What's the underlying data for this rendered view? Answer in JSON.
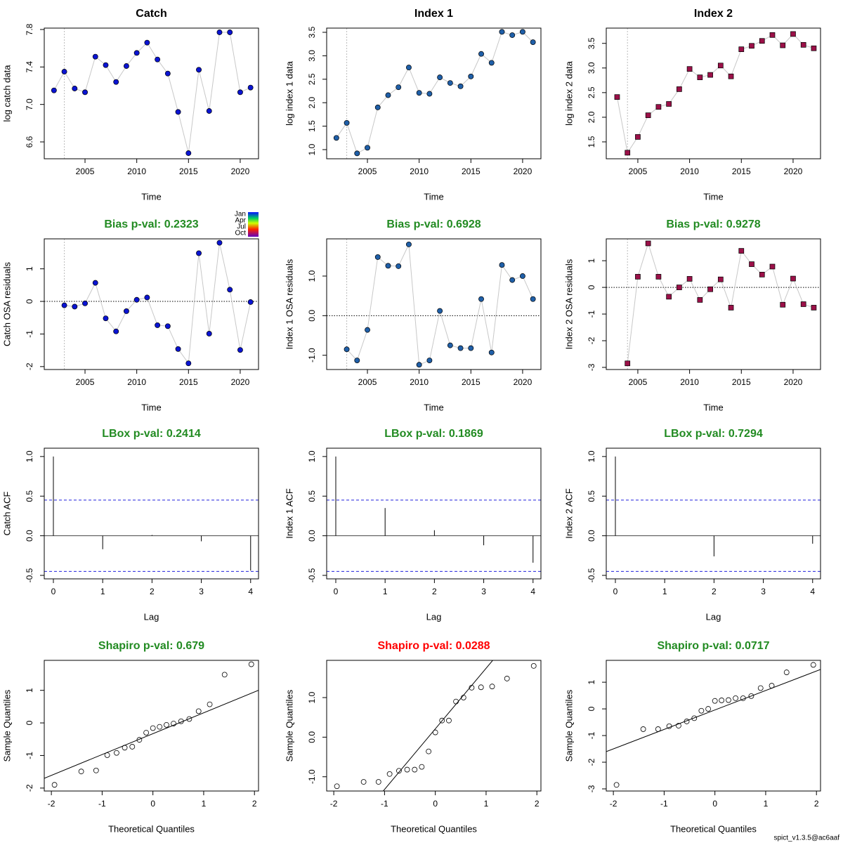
{
  "chart_data": [
    {
      "type": "line",
      "title": "Catch",
      "title_color": "#000000",
      "xlabel": "Time",
      "ylabel": "log catch data",
      "marker": "circle",
      "color": "#0a14d2",
      "x": [
        2002,
        2003,
        2004,
        2005,
        2006,
        2007,
        2008,
        2009,
        2010,
        2011,
        2012,
        2013,
        2014,
        2015,
        2016,
        2017,
        2018,
        2019,
        2020,
        2021
      ],
      "values": [
        7.15,
        7.35,
        7.17,
        7.13,
        7.51,
        7.42,
        7.24,
        7.41,
        7.55,
        7.66,
        7.48,
        7.33,
        6.92,
        6.48,
        7.37,
        6.93,
        7.77,
        7.77,
        7.13,
        7.18
      ],
      "xlim": [
        2001.06,
        2021.77
      ],
      "xticks": [
        2005,
        2010,
        2015,
        2020
      ],
      "ylim": [
        6.42,
        7.815
      ],
      "yticks": [
        {
          "value": 6.6,
          "label": "6.6"
        },
        {
          "value": 7.0,
          "label": "7.0"
        },
        {
          "value": 7.4,
          "label": "7.4"
        },
        {
          "value": 7.8,
          "label": "7.8"
        }
      ],
      "vline": 2003
    },
    {
      "type": "line",
      "title": "Index 1",
      "title_color": "#000000",
      "xlabel": "Time",
      "ylabel": "log index 1 data",
      "marker": "circle",
      "color": "#1f5fa8",
      "x": [
        2002,
        2003,
        2004,
        2005,
        2006,
        2007,
        2008,
        2009,
        2010,
        2011,
        2012,
        2013,
        2014,
        2015,
        2016,
        2017,
        2018,
        2019,
        2020,
        2021
      ],
      "values": [
        1.25,
        1.57,
        0.92,
        1.04,
        1.9,
        2.16,
        2.33,
        2.75,
        2.21,
        2.19,
        2.54,
        2.42,
        2.35,
        2.56,
        3.04,
        2.85,
        3.51,
        3.44,
        3.51,
        3.29
      ],
      "xlim": [
        2001.06,
        2021.77
      ],
      "xticks": [
        2005,
        2010,
        2015,
        2020
      ],
      "ylim": [
        0.805,
        3.59
      ],
      "yticks": [
        {
          "value": 1.0,
          "label": "1.0"
        },
        {
          "value": 1.5,
          "label": "1.5"
        },
        {
          "value": 2.0,
          "label": "2.0"
        },
        {
          "value": 2.5,
          "label": "2.5"
        },
        {
          "value": 3.0,
          "label": "3.0"
        },
        {
          "value": 3.5,
          "label": "3.5"
        }
      ],
      "vline": 2003
    },
    {
      "type": "line",
      "title": "Index 2",
      "title_color": "#000000",
      "xlabel": "Time",
      "ylabel": "log index 2 data",
      "marker": "square",
      "color": "#9b1048",
      "x": [
        2003,
        2004,
        2005,
        2006,
        2007,
        2008,
        2009,
        2010,
        2011,
        2012,
        2013,
        2014,
        2015,
        2016,
        2017,
        2018,
        2019,
        2020,
        2021,
        2022
      ],
      "values": [
        2.41,
        1.28,
        1.6,
        2.04,
        2.21,
        2.27,
        2.57,
        2.98,
        2.81,
        2.86,
        3.05,
        2.83,
        3.38,
        3.45,
        3.55,
        3.67,
        3.46,
        3.69,
        3.47,
        3.4
      ],
      "xlim": [
        2001.95,
        2022.65
      ],
      "xticks": [
        2005,
        2010,
        2015,
        2020
      ],
      "ylim": [
        1.157,
        3.81
      ],
      "yticks": [
        {
          "value": 1.5,
          "label": "1.5"
        },
        {
          "value": 2.0,
          "label": "2.0"
        },
        {
          "value": 2.5,
          "label": "2.5"
        },
        {
          "value": 3.0,
          "label": "3.0"
        },
        {
          "value": 3.5,
          "label": "3.5"
        }
      ],
      "vline": 2004
    },
    {
      "type": "line",
      "title": "Bias p-val: 0.2323",
      "title_color": "#228b22",
      "xlabel": "Time",
      "ylabel": "Catch OSA residuals",
      "marker": "circle",
      "color": "#0a14d2",
      "x": [
        2003,
        2004,
        2005,
        2006,
        2007,
        2008,
        2009,
        2010,
        2011,
        2012,
        2013,
        2014,
        2015,
        2016,
        2017,
        2018,
        2019,
        2020,
        2021
      ],
      "values": [
        -0.12,
        -0.16,
        -0.06,
        0.57,
        -0.52,
        -0.92,
        -0.3,
        0.05,
        0.12,
        -0.73,
        -0.76,
        -1.46,
        -1.9,
        1.48,
        -0.99,
        1.8,
        0.36,
        -1.49,
        -0.02
      ],
      "xlim": [
        2001.06,
        2021.77
      ],
      "xticks": [
        2005,
        2010,
        2015,
        2020
      ],
      "ylim": [
        -2.09,
        1.92
      ],
      "yticks": [
        -2,
        -1,
        0,
        1
      ],
      "vline": 2003,
      "hline": 0
    },
    {
      "type": "line",
      "title": "Bias p-val: 0.6928",
      "title_color": "#228b22",
      "xlabel": "Time",
      "ylabel": "Index 1 OSA residuals",
      "marker": "circle",
      "color": "#1f5fa8",
      "x": [
        2003,
        2004,
        2005,
        2006,
        2007,
        2008,
        2009,
        2010,
        2011,
        2012,
        2013,
        2014,
        2015,
        2016,
        2017,
        2018,
        2019,
        2020,
        2021
      ],
      "values": [
        -0.85,
        -1.13,
        -0.36,
        1.48,
        1.26,
        1.25,
        1.8,
        -1.24,
        -1.13,
        0.12,
        -0.75,
        -0.82,
        -0.82,
        0.42,
        -0.93,
        1.28,
        0.9,
        1.0,
        0.42
      ],
      "xlim": [
        2001.06,
        2021.77
      ],
      "xticks": [
        2005,
        2010,
        2015,
        2020
      ],
      "ylim": [
        -1.36,
        1.94
      ],
      "yticks": [
        {
          "value": -1.0,
          "label": "-1.0"
        },
        {
          "value": 0.0,
          "label": "0.0"
        },
        {
          "value": 1.0,
          "label": "1.0"
        }
      ],
      "vline": 2003,
      "hline": 0
    },
    {
      "type": "line",
      "title": "Bias p-val: 0.9278",
      "title_color": "#228b22",
      "xlabel": "Time",
      "ylabel": "Index 2 OSA residuals",
      "marker": "square",
      "color": "#9b1048",
      "x": [
        2004,
        2005,
        2006,
        2007,
        2008,
        2009,
        2010,
        2011,
        2012,
        2013,
        2014,
        2015,
        2016,
        2017,
        2018,
        2019,
        2020,
        2021,
        2022
      ],
      "values": [
        -2.85,
        0.4,
        1.65,
        0.4,
        -0.35,
        0.0,
        0.32,
        -0.47,
        -0.07,
        0.3,
        -0.76,
        1.37,
        0.87,
        0.48,
        0.78,
        -0.65,
        0.33,
        -0.63,
        -0.76
      ],
      "xlim": [
        2001.95,
        2022.65
      ],
      "xticks": [
        2005,
        2010,
        2015,
        2020
      ],
      "ylim": [
        -3.08,
        1.82
      ],
      "yticks": [
        -3,
        -2,
        -1,
        0,
        1
      ],
      "vline": 2004,
      "hline": 0
    },
    {
      "type": "bar",
      "title": "LBox p-val: 0.2414",
      "title_color": "#228b22",
      "xlabel": "Lag",
      "ylabel": "Catch ACF",
      "x": [
        0,
        1,
        2,
        3,
        4
      ],
      "values": [
        1.0,
        -0.17,
        0.01,
        -0.07,
        -0.44
      ],
      "conf_limits": [
        -0.45,
        0.45
      ],
      "hline": 0,
      "xlim": [
        -0.185,
        4.16
      ],
      "xticks": [
        0,
        1,
        2,
        3,
        4
      ],
      "ylim": [
        -0.544,
        1.105
      ],
      "yticks": [
        {
          "value": -0.5,
          "label": "-0.5"
        },
        {
          "value": 0.0,
          "label": "0.0"
        },
        {
          "value": 0.5,
          "label": "0.5"
        },
        {
          "value": 1.0,
          "label": "1.0"
        }
      ]
    },
    {
      "type": "bar",
      "title": "LBox p-val: 0.1869",
      "title_color": "#228b22",
      "xlabel": "Lag",
      "ylabel": "Index 1 ACF",
      "x": [
        0,
        1,
        2,
        3,
        4
      ],
      "values": [
        1.0,
        0.35,
        0.07,
        -0.12,
        -0.34
      ],
      "conf_limits": [
        -0.45,
        0.45
      ],
      "hline": 0,
      "xlim": [
        -0.185,
        4.16
      ],
      "xticks": [
        0,
        1,
        2,
        3,
        4
      ],
      "ylim": [
        -0.544,
        1.105
      ],
      "yticks": [
        {
          "value": -0.5,
          "label": "-0.5"
        },
        {
          "value": 0.0,
          "label": "0.0"
        },
        {
          "value": 0.5,
          "label": "0.5"
        },
        {
          "value": 1.0,
          "label": "1.0"
        }
      ]
    },
    {
      "type": "bar",
      "title": "LBox p-val: 0.7294",
      "title_color": "#228b22",
      "xlabel": "Lag",
      "ylabel": "Index 2 ACF",
      "x": [
        0,
        1,
        2,
        3,
        4
      ],
      "values": [
        1.0,
        0.0,
        -0.26,
        0.0,
        -0.1
      ],
      "conf_limits": [
        -0.45,
        0.45
      ],
      "hline": 0,
      "xlim": [
        -0.185,
        4.16
      ],
      "xticks": [
        0,
        1,
        2,
        3,
        4
      ],
      "ylim": [
        -0.544,
        1.105
      ],
      "yticks": [
        {
          "value": -0.5,
          "label": "-0.5"
        },
        {
          "value": 0.0,
          "label": "0.0"
        },
        {
          "value": 0.5,
          "label": "0.5"
        },
        {
          "value": 1.0,
          "label": "1.0"
        }
      ]
    },
    {
      "type": "scatter",
      "title": "Shapiro p-val: 0.679",
      "title_color": "#228b22",
      "xlabel": "Theoretical Quantiles",
      "ylabel": "Sample Quantiles",
      "x": [
        -1.938,
        -1.412,
        -1.119,
        -0.9,
        -0.716,
        -0.555,
        -0.407,
        -0.267,
        -0.132,
        0,
        0.132,
        0.267,
        0.407,
        0.555,
        0.716,
        0.9,
        1.119,
        1.412,
        1.938
      ],
      "values": [
        -1.9,
        -1.49,
        -1.46,
        -0.99,
        -0.92,
        -0.76,
        -0.73,
        -0.52,
        -0.3,
        -0.16,
        -0.12,
        -0.06,
        -0.02,
        0.05,
        0.12,
        0.36,
        0.57,
        1.48,
        1.8
      ],
      "qqline": {
        "intercept": -0.33,
        "slope": 0.64
      },
      "xlim": [
        -2.14,
        2.08
      ],
      "xticks": [
        -2,
        -1,
        0,
        1,
        2
      ],
      "ylim": [
        -2.09,
        1.92
      ],
      "yticks": [
        -2,
        -1,
        0,
        1
      ]
    },
    {
      "type": "scatter",
      "title": "Shapiro p-val: 0.0288",
      "title_color": "#ff0000",
      "xlabel": "Theoretical Quantiles",
      "ylabel": "Sample Quantiles",
      "x": [
        -1.938,
        -1.412,
        -1.119,
        -0.9,
        -0.716,
        -0.555,
        -0.407,
        -0.267,
        -0.132,
        0,
        0.132,
        0.267,
        0.407,
        0.555,
        0.716,
        0.9,
        1.119,
        1.412,
        1.938
      ],
      "values": [
        -1.24,
        -1.13,
        -1.13,
        -0.93,
        -0.85,
        -0.82,
        -0.82,
        -0.75,
        -0.36,
        0.12,
        0.42,
        0.42,
        0.9,
        1.0,
        1.25,
        1.26,
        1.28,
        1.48,
        1.8
      ],
      "qqline": {
        "intercept": 0.21,
        "slope": 1.53
      },
      "xlim": [
        -2.14,
        2.08
      ],
      "xticks": [
        -2,
        -1,
        0,
        1,
        2
      ],
      "ylim": [
        -1.36,
        1.94
      ],
      "yticks": [
        {
          "value": -1.0,
          "label": "-1.0"
        },
        {
          "value": 0.0,
          "label": "0.0"
        },
        {
          "value": 1.0,
          "label": "1.0"
        }
      ]
    },
    {
      "type": "scatter",
      "title": "Shapiro p-val: 0.0717",
      "title_color": "#228b22",
      "xlabel": "Theoretical Quantiles",
      "ylabel": "Sample Quantiles",
      "x": [
        -1.938,
        -1.412,
        -1.119,
        -0.9,
        -0.716,
        -0.555,
        -0.407,
        -0.267,
        -0.132,
        0,
        0.132,
        0.267,
        0.407,
        0.555,
        0.716,
        0.9,
        1.119,
        1.412,
        1.938
      ],
      "values": [
        -2.85,
        -0.76,
        -0.76,
        -0.65,
        -0.63,
        -0.47,
        -0.35,
        -0.07,
        0.0,
        0.3,
        0.32,
        0.33,
        0.4,
        0.4,
        0.48,
        0.78,
        0.87,
        1.37,
        1.65
      ],
      "qqline": {
        "intercept": -0.04,
        "slope": 0.73
      },
      "xlim": [
        -2.14,
        2.08
      ],
      "xticks": [
        -2,
        -1,
        0,
        1,
        2
      ],
      "ylim": [
        -3.08,
        1.82
      ],
      "yticks": [
        -3,
        -2,
        -1,
        0,
        1
      ]
    }
  ],
  "month_legend": [
    "Jan",
    "Apr",
    "Jul",
    "Oct"
  ],
  "footer": "spict_v1.3.5@ac6aaf"
}
